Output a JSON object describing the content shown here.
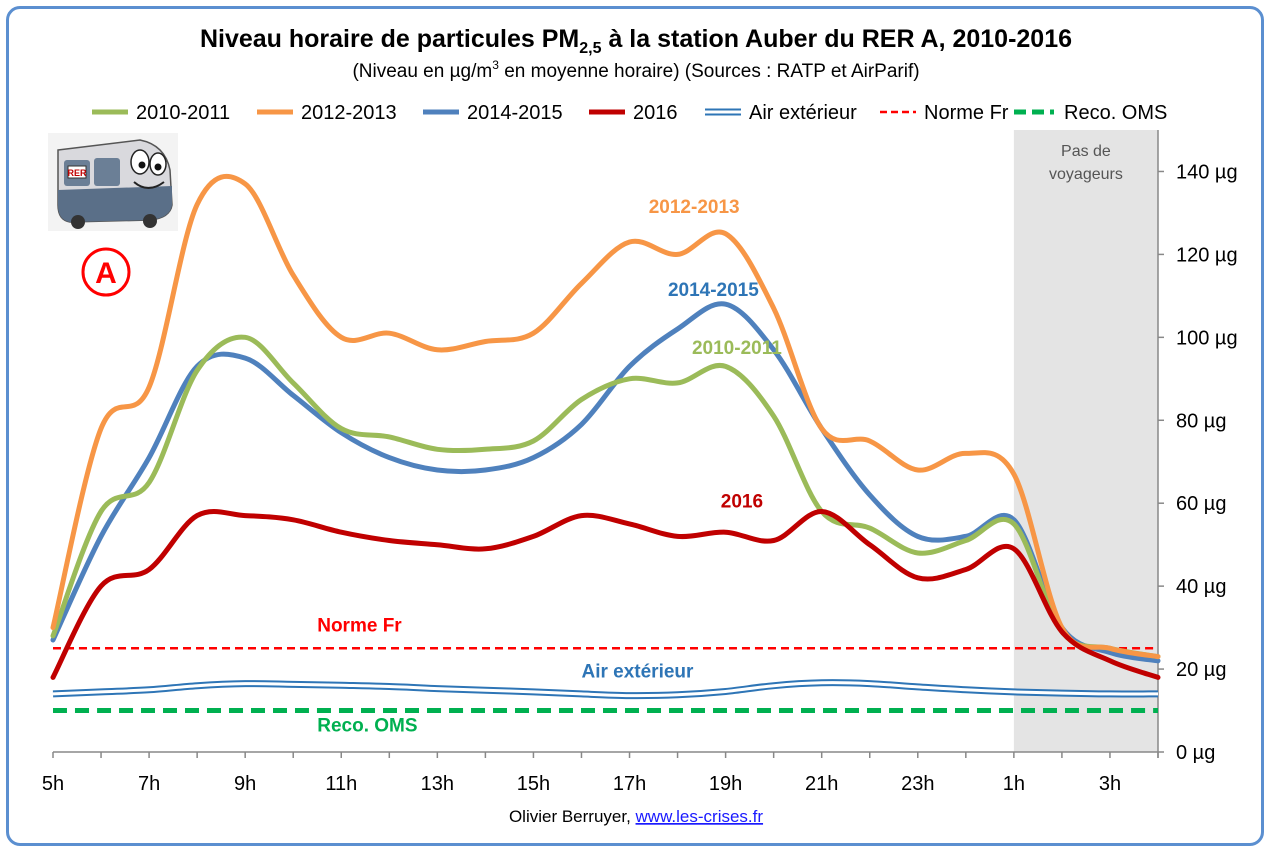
{
  "chart_data": {
    "type": "line",
    "title_main": "Niveau horaire de particules PM",
    "title_sub": "2,5",
    "title_rest": " à la station Auber du RER A, 2010-2016",
    "subtitle_a": "(Niveau en µg/m",
    "subtitle_sup": "3",
    "subtitle_b": " en moyenne horaire) (Sources : RATP et AirParif)",
    "x": [
      5,
      6,
      7,
      8,
      9,
      10,
      11,
      12,
      13,
      14,
      15,
      16,
      17,
      18,
      19,
      20,
      21,
      22,
      23,
      24,
      25,
      26,
      27,
      28
    ],
    "x_range": [
      5,
      28
    ],
    "x_ticks": [
      {
        "x": 5,
        "label": "5h"
      },
      {
        "x": 7,
        "label": "7h"
      },
      {
        "x": 9,
        "label": "9h"
      },
      {
        "x": 11,
        "label": "11h"
      },
      {
        "x": 13,
        "label": "13h"
      },
      {
        "x": 15,
        "label": "15h"
      },
      {
        "x": 17,
        "label": "17h"
      },
      {
        "x": 19,
        "label": "19h"
      },
      {
        "x": 21,
        "label": "21h"
      },
      {
        "x": 23,
        "label": "23h"
      },
      {
        "x": 25,
        "label": "1h"
      },
      {
        "x": 27,
        "label": "3h"
      }
    ],
    "y_range": [
      0,
      150
    ],
    "y_ticks": [
      {
        "v": 0,
        "label": "0 µg"
      },
      {
        "v": 20,
        "label": "20 µg"
      },
      {
        "v": 40,
        "label": "40 µg"
      },
      {
        "v": 60,
        "label": "60 µg"
      },
      {
        "v": 80,
        "label": "80 µg"
      },
      {
        "v": 100,
        "label": "100 µg"
      },
      {
        "v": 120,
        "label": "120 µg"
      },
      {
        "v": 140,
        "label": "140 µg"
      }
    ],
    "y_axis_side": "right",
    "grid": false,
    "legend_position": "top",
    "series": [
      {
        "name": "2010-2011",
        "color": "#9bbb59",
        "style": "solid",
        "values": [
          28,
          58,
          65,
          92,
          100,
          89,
          78,
          76,
          73,
          73,
          75,
          85,
          90,
          89,
          93,
          81,
          58,
          54,
          48,
          51,
          55,
          29,
          25,
          23
        ]
      },
      {
        "name": "2012-2013",
        "color": "#f79646",
        "style": "solid",
        "values": [
          30,
          78,
          88,
          132,
          137,
          115,
          100,
          101,
          97,
          99,
          101,
          113,
          123,
          120,
          125,
          107,
          78,
          75,
          68,
          72,
          67,
          30,
          25,
          23
        ]
      },
      {
        "name": "2014-2015",
        "color": "#4f81bd",
        "style": "solid",
        "values": [
          27,
          52,
          71,
          93,
          95,
          86,
          77,
          71,
          68,
          68,
          71,
          79,
          93,
          102,
          108,
          97,
          78,
          62,
          52,
          52,
          56,
          30,
          24,
          22
        ]
      },
      {
        "name": "2016",
        "color": "#c00000",
        "style": "solid",
        "values": [
          18,
          40,
          44,
          57,
          57,
          56,
          53,
          51,
          50,
          49,
          52,
          57,
          55,
          52,
          53,
          51,
          58,
          50,
          42,
          44,
          49,
          29,
          22,
          18
        ]
      },
      {
        "name": "Air extérieur",
        "color": "#2e75b6",
        "style": "double",
        "values": [
          14,
          14.5,
          15,
          16,
          16.5,
          16.3,
          16.1,
          15.8,
          15.3,
          14.9,
          14.5,
          14,
          13.6,
          13.8,
          14.6,
          16,
          16.7,
          16.5,
          15.7,
          15,
          14.5,
          14.2,
          14,
          14
        ]
      },
      {
        "name": "Norme Fr",
        "color": "#ff0000",
        "style": "dash",
        "values": [
          25,
          25,
          25,
          25,
          25,
          25,
          25,
          25,
          25,
          25,
          25,
          25,
          25,
          25,
          25,
          25,
          25,
          25,
          25,
          25,
          25,
          25,
          25,
          25
        ]
      },
      {
        "name": "Reco. OMS",
        "color": "#00b050",
        "style": "bigdash",
        "values": [
          10,
          10,
          10,
          10,
          10,
          10,
          10,
          10,
          10,
          10,
          10,
          10,
          10,
          10,
          10,
          10,
          10,
          10,
          10,
          10,
          10,
          10,
          10,
          10
        ]
      }
    ],
    "shaded_region": {
      "x_from": 25,
      "x_to": 28,
      "label_line1": "Pas de",
      "label_line2": "voyageurs"
    },
    "annotations": [
      {
        "text": "2012-2013",
        "color": "#f79646",
        "x": 17.4,
        "y": 130
      },
      {
        "text": "2014-2015",
        "color": "#2e75b6",
        "x": 17.8,
        "y": 110
      },
      {
        "text": "2010-2011",
        "color": "#9bbb59",
        "x": 18.3,
        "y": 96
      },
      {
        "text": "2016",
        "color": "#c00000",
        "x": 18.9,
        "y": 59
      },
      {
        "text": "Norme Fr",
        "color": "#ff0000",
        "x": 10.5,
        "y": 29
      },
      {
        "text": "Air extérieur",
        "color": "#2e75b6",
        "x": 16,
        "y": 18
      },
      {
        "text": "Reco. OMS",
        "color": "#00b050",
        "x": 10.5,
        "y": 5
      }
    ]
  },
  "credit": {
    "author": "Olivier Berruyer, ",
    "site": "www.les-crises.fr"
  },
  "logo": {
    "badge": "A",
    "badge_color": "#ff0000",
    "train_text": "RER",
    "image": "rer-train-cartoon-logo"
  }
}
